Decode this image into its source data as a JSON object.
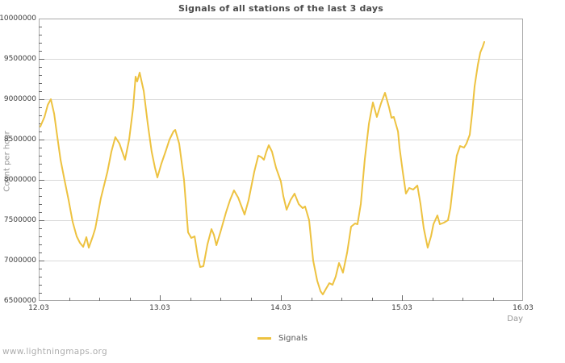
{
  "watermark": "www.lightningmaps.org",
  "colors": {
    "line": "#edc240",
    "grid": "#d9d9d9",
    "border": "#a9a9a9",
    "tick": "#6b6b6b",
    "tick_label": "#3b3b3b",
    "title": "#4c4c4c",
    "axis_name": "#979797",
    "watermark": "#adadad"
  },
  "chart_data": {
    "type": "line",
    "title": "Signals of all stations of the last 3 days",
    "xlabel": "Day",
    "ylabel": "Count per hour",
    "xlim": [
      12,
      16
    ],
    "ylim": [
      6500000,
      10000000
    ],
    "grid": "horizontal-only",
    "legend_position": "bottom-center",
    "x_ticks": {
      "values": [
        12,
        13,
        14,
        15,
        16
      ],
      "labels": [
        "12.03",
        "13.03",
        "14.03",
        "15.03",
        "16.03"
      ],
      "minor_step": 0.25
    },
    "y_ticks": {
      "values": [
        6500000,
        7000000,
        7500000,
        8000000,
        8500000,
        9000000,
        9500000,
        10000000
      ],
      "labels": [
        "6500000",
        "7000000",
        "7500000",
        "8000000",
        "8500000",
        "9000000",
        "9500000",
        "10000000"
      ],
      "minor_step": 100000
    },
    "legend": [
      {
        "label": "Signals",
        "color": "#edc240"
      }
    ],
    "series": [
      {
        "name": "Signals",
        "points": [
          [
            12.013,
            8660000
          ],
          [
            12.047,
            8780000
          ],
          [
            12.075,
            8930000
          ],
          [
            12.1,
            9000000
          ],
          [
            12.127,
            8820000
          ],
          [
            12.147,
            8600000
          ],
          [
            12.18,
            8250000
          ],
          [
            12.213,
            8000000
          ],
          [
            12.247,
            7750000
          ],
          [
            12.28,
            7480000
          ],
          [
            12.313,
            7300000
          ],
          [
            12.34,
            7220000
          ],
          [
            12.367,
            7170000
          ],
          [
            12.393,
            7290000
          ],
          [
            12.413,
            7160000
          ],
          [
            12.447,
            7300000
          ],
          [
            12.467,
            7400000
          ],
          [
            12.513,
            7770000
          ],
          [
            12.567,
            8100000
          ],
          [
            12.6,
            8350000
          ],
          [
            12.633,
            8530000
          ],
          [
            12.667,
            8450000
          ],
          [
            12.713,
            8250000
          ],
          [
            12.747,
            8500000
          ],
          [
            12.78,
            8900000
          ],
          [
            12.8,
            9280000
          ],
          [
            12.813,
            9220000
          ],
          [
            12.833,
            9330000
          ],
          [
            12.867,
            9100000
          ],
          [
            12.9,
            8700000
          ],
          [
            12.933,
            8350000
          ],
          [
            12.96,
            8150000
          ],
          [
            12.98,
            8030000
          ],
          [
            13.013,
            8200000
          ],
          [
            13.047,
            8350000
          ],
          [
            13.08,
            8500000
          ],
          [
            13.113,
            8600000
          ],
          [
            13.127,
            8620000
          ],
          [
            13.16,
            8450000
          ],
          [
            13.2,
            8000000
          ],
          [
            13.233,
            7350000
          ],
          [
            13.26,
            7280000
          ],
          [
            13.287,
            7300000
          ],
          [
            13.313,
            7050000
          ],
          [
            13.333,
            6920000
          ],
          [
            13.36,
            6930000
          ],
          [
            13.393,
            7200000
          ],
          [
            13.427,
            7390000
          ],
          [
            13.447,
            7320000
          ],
          [
            13.467,
            7190000
          ],
          [
            13.5,
            7350000
          ],
          [
            13.547,
            7600000
          ],
          [
            13.58,
            7750000
          ],
          [
            13.613,
            7870000
          ],
          [
            13.647,
            7780000
          ],
          [
            13.68,
            7650000
          ],
          [
            13.7,
            7570000
          ],
          [
            13.733,
            7750000
          ],
          [
            13.78,
            8100000
          ],
          [
            13.813,
            8300000
          ],
          [
            13.84,
            8280000
          ],
          [
            13.86,
            8250000
          ],
          [
            13.88,
            8350000
          ],
          [
            13.9,
            8430000
          ],
          [
            13.927,
            8350000
          ],
          [
            13.96,
            8150000
          ],
          [
            14.0,
            7980000
          ],
          [
            14.02,
            7800000
          ],
          [
            14.047,
            7630000
          ],
          [
            14.08,
            7750000
          ],
          [
            14.113,
            7830000
          ],
          [
            14.147,
            7700000
          ],
          [
            14.18,
            7650000
          ],
          [
            14.2,
            7670000
          ],
          [
            14.233,
            7500000
          ],
          [
            14.267,
            7000000
          ],
          [
            14.3,
            6750000
          ],
          [
            14.327,
            6620000
          ],
          [
            14.347,
            6580000
          ],
          [
            14.373,
            6650000
          ],
          [
            14.4,
            6720000
          ],
          [
            14.427,
            6700000
          ],
          [
            14.453,
            6800000
          ],
          [
            14.48,
            6970000
          ],
          [
            14.5,
            6900000
          ],
          [
            14.513,
            6850000
          ],
          [
            14.547,
            7100000
          ],
          [
            14.58,
            7420000
          ],
          [
            14.613,
            7460000
          ],
          [
            14.633,
            7450000
          ],
          [
            14.66,
            7700000
          ],
          [
            14.693,
            8250000
          ],
          [
            14.727,
            8700000
          ],
          [
            14.76,
            8960000
          ],
          [
            14.793,
            8780000
          ],
          [
            14.827,
            8950000
          ],
          [
            14.86,
            9080000
          ],
          [
            14.893,
            8900000
          ],
          [
            14.913,
            8770000
          ],
          [
            14.933,
            8780000
          ],
          [
            14.967,
            8600000
          ],
          [
            14.98,
            8400000
          ],
          [
            15.007,
            8100000
          ],
          [
            15.033,
            7830000
          ],
          [
            15.06,
            7900000
          ],
          [
            15.093,
            7880000
          ],
          [
            15.127,
            7930000
          ],
          [
            15.153,
            7700000
          ],
          [
            15.18,
            7400000
          ],
          [
            15.213,
            7160000
          ],
          [
            15.24,
            7300000
          ],
          [
            15.26,
            7450000
          ],
          [
            15.293,
            7560000
          ],
          [
            15.313,
            7450000
          ],
          [
            15.347,
            7470000
          ],
          [
            15.38,
            7500000
          ],
          [
            15.4,
            7650000
          ],
          [
            15.427,
            8000000
          ],
          [
            15.453,
            8300000
          ],
          [
            15.48,
            8420000
          ],
          [
            15.513,
            8400000
          ],
          [
            15.533,
            8450000
          ],
          [
            15.56,
            8560000
          ],
          [
            15.58,
            8830000
          ],
          [
            15.6,
            9160000
          ],
          [
            15.627,
            9430000
          ],
          [
            15.647,
            9580000
          ],
          [
            15.667,
            9650000
          ],
          [
            15.68,
            9710000
          ]
        ]
      }
    ]
  }
}
